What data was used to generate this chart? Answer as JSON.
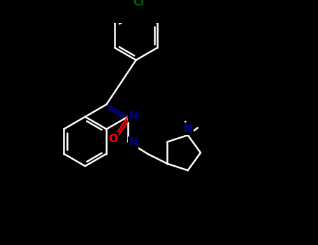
{
  "background": "#000000",
  "bond_color": "#ffffff",
  "N_color": "#00008b",
  "O_color": "#ff0000",
  "Cl_color": "#006400",
  "line_width": 1.8,
  "font_size": 10,
  "xlim": [
    -4.5,
    5.5
  ],
  "ylim": [
    -4.0,
    5.0
  ]
}
